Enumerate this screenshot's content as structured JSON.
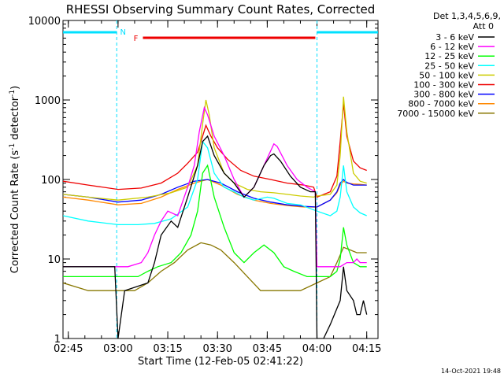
{
  "chart_data": {
    "type": "line",
    "title": "RHESSI Observing Summary Count Rates, Corrected",
    "ylabel_main": "Corrected Count Rate (s",
    "ylabel_sup": "-1",
    "ylabel_mid": " detector",
    "ylabel_end": ")",
    "xlabel": "Start Time (12-Feb-05 02:41:22)",
    "timestamp": "14-Oct-2021 19:48",
    "y_scale": "log",
    "ylim": [
      1,
      10000
    ],
    "xlim_minutes": [
      2.4,
      97.4
    ],
    "x_ticks": [
      {
        "t": 4,
        "label": "02:45"
      },
      {
        "t": 19,
        "label": "03:00"
      },
      {
        "t": 34,
        "label": "03:15"
      },
      {
        "t": 49,
        "label": "03:30"
      },
      {
        "t": 64,
        "label": "03:45"
      },
      {
        "t": 79,
        "label": "04:00"
      },
      {
        "t": 94,
        "label": "04:15"
      }
    ],
    "y_ticks": [
      {
        "v": 1,
        "label": "1"
      },
      {
        "v": 10,
        "label": "10"
      },
      {
        "v": 100,
        "label": "100"
      },
      {
        "v": 1000,
        "label": "1000"
      },
      {
        "v": 10000,
        "label": "10000"
      }
    ],
    "legend_header": [
      "Det 1,3,4,5,6,9,",
      "Att 0"
    ],
    "legend_position": "top-right outside plot",
    "night_intervals": [
      [
        2.4,
        18.6
      ],
      [
        79.0,
        97.4
      ]
    ],
    "night_label": "N",
    "flare_interval": [
      26.5,
      78.5
    ],
    "flare_label": "F",
    "series": [
      {
        "name": "3 - 6 keV",
        "color": "#000000",
        "values": [
          [
            2.4,
            8
          ],
          [
            10,
            8
          ],
          [
            18,
            8
          ],
          [
            19,
            1
          ],
          [
            21,
            4
          ],
          [
            28,
            5
          ],
          [
            30,
            9
          ],
          [
            32,
            20
          ],
          [
            35,
            30
          ],
          [
            37,
            25
          ],
          [
            40,
            60
          ],
          [
            43,
            150
          ],
          [
            44.5,
            300
          ],
          [
            46,
            350
          ],
          [
            48,
            200
          ],
          [
            51,
            120
          ],
          [
            54,
            90
          ],
          [
            57,
            60
          ],
          [
            60,
            80
          ],
          [
            63,
            150
          ],
          [
            65,
            200
          ],
          [
            66,
            210
          ],
          [
            68,
            170
          ],
          [
            71,
            110
          ],
          [
            74,
            80
          ],
          [
            77,
            70
          ],
          [
            78.5,
            70
          ],
          [
            79,
            1
          ],
          [
            81,
            1
          ],
          [
            83,
            1.5
          ],
          [
            86,
            3
          ],
          [
            87,
            8
          ],
          [
            88,
            4
          ],
          [
            90,
            3
          ],
          [
            91,
            2
          ],
          [
            92,
            2
          ],
          [
            93,
            3
          ],
          [
            94,
            2
          ]
        ]
      },
      {
        "name": "6 - 12 keV",
        "color": "#ff00ff",
        "values": [
          [
            2.4,
            8
          ],
          [
            10,
            8
          ],
          [
            19,
            8
          ],
          [
            22,
            8
          ],
          [
            26,
            9
          ],
          [
            28,
            12
          ],
          [
            30,
            20
          ],
          [
            32,
            30
          ],
          [
            34,
            40
          ],
          [
            37,
            35
          ],
          [
            40,
            80
          ],
          [
            42,
            150
          ],
          [
            43.5,
            400
          ],
          [
            45,
            800
          ],
          [
            46,
            650
          ],
          [
            48,
            350
          ],
          [
            51,
            200
          ],
          [
            54,
            100
          ],
          [
            57,
            60
          ],
          [
            60,
            80
          ],
          [
            63,
            150
          ],
          [
            66,
            280
          ],
          [
            67,
            260
          ],
          [
            70,
            150
          ],
          [
            73,
            100
          ],
          [
            76,
            80
          ],
          [
            78.5,
            70
          ],
          [
            79,
            8
          ],
          [
            83,
            8
          ],
          [
            86,
            8
          ],
          [
            88,
            9
          ],
          [
            90,
            9
          ],
          [
            91,
            10
          ],
          [
            92,
            9
          ],
          [
            94,
            9
          ]
        ]
      },
      {
        "name": "12 - 25 keV",
        "color": "#00ff00",
        "values": [
          [
            2.4,
            6
          ],
          [
            10,
            6
          ],
          [
            19,
            6
          ],
          [
            25,
            6
          ],
          [
            28,
            7
          ],
          [
            31,
            8
          ],
          [
            35,
            9
          ],
          [
            38,
            12
          ],
          [
            41,
            20
          ],
          [
            43,
            40
          ],
          [
            44.5,
            120
          ],
          [
            46,
            150
          ],
          [
            48,
            60
          ],
          [
            51,
            25
          ],
          [
            54,
            12
          ],
          [
            57,
            9
          ],
          [
            60,
            12
          ],
          [
            63,
            15
          ],
          [
            66,
            12
          ],
          [
            69,
            8
          ],
          [
            72,
            7
          ],
          [
            76,
            6
          ],
          [
            79,
            6
          ],
          [
            83,
            6
          ],
          [
            85,
            7
          ],
          [
            86,
            10
          ],
          [
            87,
            25
          ],
          [
            88,
            15
          ],
          [
            90,
            9
          ],
          [
            92,
            8
          ],
          [
            94,
            8
          ]
        ]
      },
      {
        "name": "25 - 50 keV",
        "color": "#00ffff",
        "values": [
          [
            2.4,
            35
          ],
          [
            10,
            30
          ],
          [
            19,
            27
          ],
          [
            25,
            27
          ],
          [
            30,
            28
          ],
          [
            35,
            32
          ],
          [
            40,
            45
          ],
          [
            43,
            100
          ],
          [
            44.5,
            300
          ],
          [
            46,
            250
          ],
          [
            48,
            120
          ],
          [
            51,
            80
          ],
          [
            54,
            70
          ],
          [
            57,
            60
          ],
          [
            60,
            55
          ],
          [
            64,
            60
          ],
          [
            66,
            58
          ],
          [
            70,
            50
          ],
          [
            74,
            48
          ],
          [
            79,
            40
          ],
          [
            83,
            35
          ],
          [
            85,
            40
          ],
          [
            86,
            60
          ],
          [
            87,
            150
          ],
          [
            88,
            70
          ],
          [
            90,
            45
          ],
          [
            92,
            38
          ],
          [
            94,
            35
          ]
        ]
      },
      {
        "name": "50 - 100 keV",
        "color": "#cccc00",
        "values": [
          [
            2.4,
            65
          ],
          [
            10,
            60
          ],
          [
            19,
            55
          ],
          [
            28,
            60
          ],
          [
            35,
            68
          ],
          [
            40,
            80
          ],
          [
            43,
            150
          ],
          [
            44.5,
            500
          ],
          [
            45.5,
            1000
          ],
          [
            46.5,
            650
          ],
          [
            48,
            250
          ],
          [
            51,
            120
          ],
          [
            54,
            90
          ],
          [
            58,
            75
          ],
          [
            62,
            70
          ],
          [
            66,
            68
          ],
          [
            70,
            65
          ],
          [
            74,
            62
          ],
          [
            78,
            60
          ],
          [
            79,
            62
          ],
          [
            83,
            65
          ],
          [
            85,
            85
          ],
          [
            86,
            200
          ],
          [
            87,
            1100
          ],
          [
            88,
            400
          ],
          [
            90,
            120
          ],
          [
            92,
            95
          ],
          [
            94,
            90
          ]
        ]
      },
      {
        "name": "100 - 300 keV",
        "color": "#ee0000",
        "values": [
          [
            2.4,
            95
          ],
          [
            10,
            85
          ],
          [
            19,
            75
          ],
          [
            26,
            78
          ],
          [
            32,
            90
          ],
          [
            37,
            120
          ],
          [
            40,
            160
          ],
          [
            43,
            220
          ],
          [
            44.5,
            350
          ],
          [
            45.5,
            480
          ],
          [
            47,
            350
          ],
          [
            49,
            250
          ],
          [
            52,
            180
          ],
          [
            56,
            130
          ],
          [
            60,
            110
          ],
          [
            65,
            100
          ],
          [
            70,
            90
          ],
          [
            75,
            85
          ],
          [
            78,
            80
          ],
          [
            79,
            60
          ],
          [
            83,
            70
          ],
          [
            85,
            110
          ],
          [
            86,
            300
          ],
          [
            87,
            900
          ],
          [
            88,
            350
          ],
          [
            90,
            170
          ],
          [
            92,
            140
          ],
          [
            94,
            130
          ]
        ]
      },
      {
        "name": "300 - 800 keV",
        "color": "#0000ff",
        "values": [
          [
            2.4,
            65
          ],
          [
            10,
            60
          ],
          [
            19,
            52
          ],
          [
            26,
            55
          ],
          [
            32,
            65
          ],
          [
            37,
            80
          ],
          [
            42,
            95
          ],
          [
            46,
            100
          ],
          [
            50,
            90
          ],
          [
            55,
            70
          ],
          [
            60,
            58
          ],
          [
            65,
            52
          ],
          [
            70,
            48
          ],
          [
            75,
            46
          ],
          [
            79,
            45
          ],
          [
            83,
            55
          ],
          [
            85,
            70
          ],
          [
            86,
            90
          ],
          [
            87,
            100
          ],
          [
            88,
            92
          ],
          [
            90,
            85
          ],
          [
            92,
            85
          ],
          [
            94,
            85
          ]
        ]
      },
      {
        "name": "800 - 7000 keV",
        "color": "#ff8800",
        "values": [
          [
            2.4,
            60
          ],
          [
            10,
            55
          ],
          [
            19,
            48
          ],
          [
            26,
            50
          ],
          [
            32,
            60
          ],
          [
            37,
            75
          ],
          [
            42,
            90
          ],
          [
            46,
            100
          ],
          [
            50,
            85
          ],
          [
            55,
            65
          ],
          [
            60,
            55
          ],
          [
            65,
            50
          ],
          [
            70,
            47
          ],
          [
            75,
            45
          ],
          [
            79,
            45
          ],
          [
            83,
            55
          ],
          [
            85,
            68
          ],
          [
            86,
            85
          ],
          [
            87,
            95
          ],
          [
            88,
            90
          ],
          [
            90,
            88
          ],
          [
            92,
            87
          ],
          [
            94,
            85
          ]
        ]
      },
      {
        "name": "7000 - 15000 keV",
        "color": "#887700",
        "values": [
          [
            2.4,
            5
          ],
          [
            10,
            4
          ],
          [
            19,
            4
          ],
          [
            24,
            4
          ],
          [
            28,
            5
          ],
          [
            32,
            7
          ],
          [
            36,
            9
          ],
          [
            40,
            13
          ],
          [
            44,
            16
          ],
          [
            47,
            15
          ],
          [
            50,
            13
          ],
          [
            54,
            9
          ],
          [
            58,
            6
          ],
          [
            62,
            4
          ],
          [
            66,
            4
          ],
          [
            70,
            4
          ],
          [
            74,
            4
          ],
          [
            79,
            5
          ],
          [
            83,
            6
          ],
          [
            85,
            9
          ],
          [
            87,
            14
          ],
          [
            89,
            13
          ],
          [
            91,
            12
          ],
          [
            94,
            12
          ]
        ]
      }
    ]
  }
}
